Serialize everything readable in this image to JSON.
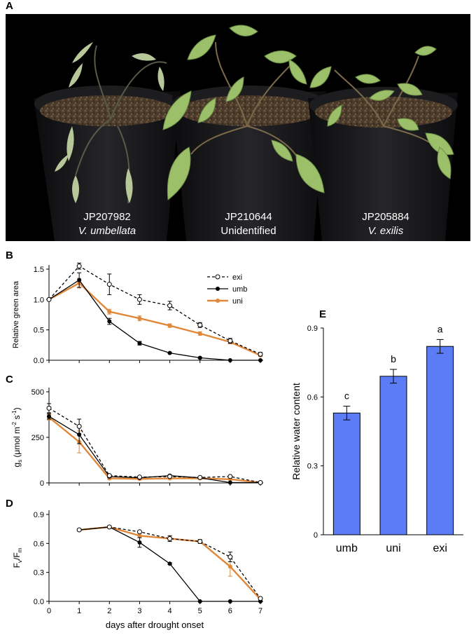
{
  "panels": {
    "a": "A",
    "b": "B",
    "c": "C",
    "d": "D",
    "e": "E"
  },
  "photo": {
    "plants": [
      {
        "accession": "JP207982",
        "species": "V. umbellata",
        "italic": true
      },
      {
        "accession": "JP210644",
        "species": "Unidentified",
        "italic": false
      },
      {
        "accession": "JP205884",
        "species": "V. exilis",
        "italic": true
      }
    ]
  },
  "colors": {
    "exi": "#000000",
    "umb": "#000000",
    "uni": "#E0883A",
    "bar": "#5B7CF5"
  },
  "chart_data": [
    {
      "panel": "B",
      "type": "line",
      "ylabel": "Relative green area",
      "ylim": [
        0,
        1.5
      ],
      "yticks": [
        "0.0",
        "0.5",
        "1.0",
        "1.5"
      ],
      "xlim": [
        0,
        7
      ],
      "x": [
        0,
        1,
        2,
        3,
        4,
        5,
        6,
        7
      ],
      "legend": "top-right",
      "series": [
        {
          "name": "exi",
          "style": "dashed-open",
          "values": [
            1.0,
            1.55,
            1.25,
            1.0,
            0.9,
            0.58,
            0.32,
            0.1
          ],
          "err": [
            0.02,
            0.05,
            0.17,
            0.08,
            0.07,
            0.04,
            0.04,
            0.03
          ]
        },
        {
          "name": "umb",
          "style": "solid-filled",
          "values": [
            1.0,
            1.32,
            0.64,
            0.28,
            0.12,
            0.04,
            0.0,
            0.0
          ],
          "err": [
            0.02,
            0.12,
            0.05,
            0.03,
            0.01,
            0.01,
            0.0,
            0.0
          ]
        },
        {
          "name": "uni",
          "style": "orange",
          "values": [
            1.0,
            1.27,
            0.8,
            0.69,
            0.57,
            0.44,
            0.3,
            0.08
          ],
          "err": [
            0.02,
            0.08,
            0.04,
            0.04,
            0.03,
            0.03,
            0.03,
            0.01
          ]
        }
      ]
    },
    {
      "panel": "C",
      "type": "line",
      "ylabel_main": "g",
      "ylabel_sub": "s",
      "ylabel_unit_a": " (μmol m",
      "ylabel_sup_a": "-2",
      "ylabel_unit_b": " s",
      "ylabel_sup_b": "-1",
      "ylabel_close": ")",
      "ylim": [
        0,
        500
      ],
      "yticks": [
        "0",
        "250",
        "500"
      ],
      "xlim": [
        0,
        7
      ],
      "x": [
        0,
        1,
        2,
        3,
        4,
        5,
        6,
        7
      ],
      "series": [
        {
          "name": "exi",
          "style": "dashed-open",
          "values": [
            410,
            310,
            40,
            32,
            35,
            30,
            35,
            2
          ],
          "err": [
            25,
            40,
            5,
            5,
            5,
            5,
            5,
            2
          ]
        },
        {
          "name": "umb",
          "style": "solid-filled",
          "values": [
            365,
            265,
            35,
            28,
            40,
            28,
            2,
            2
          ],
          "err": [
            15,
            50,
            5,
            5,
            5,
            5,
            2,
            2
          ]
        },
        {
          "name": "uni",
          "style": "orange",
          "values": [
            360,
            225,
            25,
            22,
            25,
            25,
            20,
            2
          ],
          "err": [
            15,
            60,
            5,
            5,
            5,
            5,
            5,
            2
          ]
        }
      ]
    },
    {
      "panel": "D",
      "type": "line",
      "ylabel_main": "F",
      "ylabel_sub1": "v",
      "ylabel_mid": "/F",
      "ylabel_sub2": "m",
      "xlabel": "days after drought onset",
      "ylim": [
        0,
        0.9
      ],
      "yticks": [
        "0.0",
        "0.3",
        "0.6",
        "0.9"
      ],
      "xlim": [
        0,
        7
      ],
      "xticks": [
        "0",
        "1",
        "2",
        "3",
        "4",
        "5",
        "6",
        "7"
      ],
      "series": [
        {
          "name": "exi",
          "style": "dashed-open",
          "x": [
            1,
            2,
            3,
            4,
            5,
            6,
            7
          ],
          "values": [
            0.74,
            0.77,
            0.72,
            0.65,
            0.62,
            0.46,
            0.03
          ],
          "err": [
            0.01,
            0.01,
            0.01,
            0.03,
            0.02,
            0.05,
            0.01
          ]
        },
        {
          "name": "umb",
          "style": "solid-filled",
          "x": [
            1,
            2,
            3,
            4,
            5,
            6,
            7
          ],
          "values": [
            0.74,
            0.77,
            0.61,
            0.39,
            0.0,
            0.0,
            0.0
          ],
          "err": [
            0.01,
            0.01,
            0.05,
            0.01,
            0.0,
            0.0,
            0.0
          ]
        },
        {
          "name": "uni",
          "style": "orange",
          "x": [
            1,
            2,
            3,
            4,
            5,
            6,
            7
          ],
          "values": [
            0.74,
            0.77,
            0.68,
            0.65,
            0.62,
            0.36,
            0.02
          ],
          "err": [
            0.01,
            0.01,
            0.02,
            0.02,
            0.01,
            0.1,
            0.01
          ]
        }
      ]
    },
    {
      "panel": "E",
      "type": "bar",
      "ylabel": "Relative water content",
      "ylim": [
        0,
        0.9
      ],
      "yticks": [
        "0",
        "0.3",
        "0.6",
        "0.9"
      ],
      "categories": [
        "umb",
        "uni",
        "exi"
      ],
      "values": [
        0.53,
        0.69,
        0.82
      ],
      "err": [
        0.03,
        0.03,
        0.03
      ],
      "letters": [
        "c",
        "b",
        "a"
      ]
    }
  ]
}
